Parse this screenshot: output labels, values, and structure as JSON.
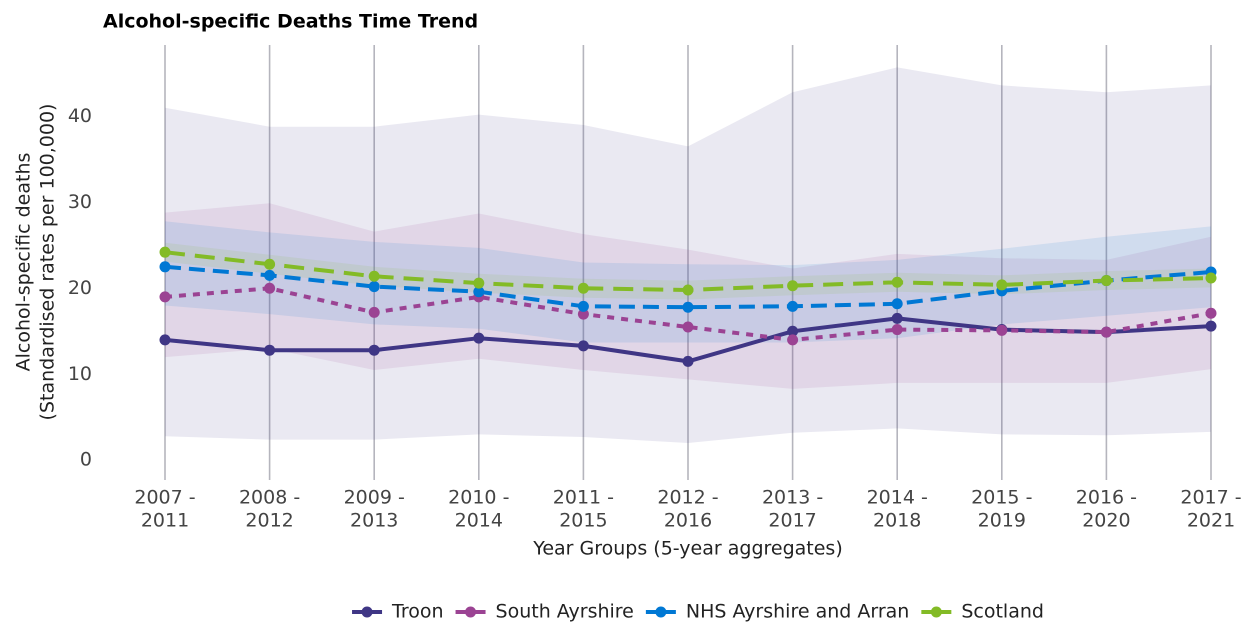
{
  "chart_data": {
    "type": "line",
    "title": "Alcohol-specific Deaths Time Trend",
    "x_label": "Year Groups (5-year aggregates)",
    "y_label": [
      "Alcohol-specific deaths",
      "(Standardised rates per 100,000)"
    ],
    "categories": [
      [
        "2007 -",
        "2011"
      ],
      [
        "2008 -",
        "2012"
      ],
      [
        "2009 -",
        "2013"
      ],
      [
        "2010 -",
        "2014"
      ],
      [
        "2011 -",
        "2015"
      ],
      [
        "2012 -",
        "2016"
      ],
      [
        "2013 -",
        "2017"
      ],
      [
        "2014 -",
        "2018"
      ],
      [
        "2015 -",
        "2019"
      ],
      [
        "2016 -",
        "2020"
      ],
      [
        "2017 -",
        "2021"
      ]
    ],
    "ylim": [
      -2.3,
      48.3
    ],
    "yticks": [
      0,
      10,
      20,
      30,
      40
    ],
    "grid": "vertical",
    "legend": "bottom",
    "series": [
      {
        "name": "Troon",
        "color": "#3f3685",
        "linestyle": "solid",
        "values": [
          14.0,
          12.8,
          12.8,
          14.2,
          13.3,
          11.5,
          15.0,
          16.5,
          15.2,
          14.9,
          15.6
        ],
        "upper": [
          41.0,
          38.8,
          38.8,
          40.2,
          39.0,
          36.5,
          42.8,
          45.7,
          43.6,
          42.8,
          43.6
        ],
        "lower": [
          2.8,
          2.4,
          2.4,
          3.0,
          2.7,
          2.0,
          3.2,
          3.7,
          3.0,
          2.9,
          3.3
        ]
      },
      {
        "name": "South Ayrshire",
        "color": "#9b4393",
        "linestyle": "dotted",
        "values": [
          19.0,
          20.0,
          17.2,
          19.0,
          17.0,
          15.5,
          14.0,
          15.2,
          15.1,
          14.9,
          17.1
        ],
        "upper": [
          28.8,
          29.9,
          26.6,
          28.7,
          26.3,
          24.5,
          22.3,
          24.0,
          23.5,
          23.3,
          26.0
        ],
        "lower": [
          12.0,
          13.0,
          10.5,
          11.8,
          10.5,
          9.4,
          8.3,
          9.0,
          9.0,
          9.0,
          10.6
        ]
      },
      {
        "name": "NHS Ayrshire and Arran",
        "color": "#0078d4",
        "linestyle": "dashed",
        "values": [
          22.5,
          21.5,
          20.2,
          19.6,
          17.9,
          17.8,
          17.9,
          18.2,
          19.7,
          20.9,
          21.9
        ],
        "upper": [
          27.8,
          26.5,
          25.4,
          24.7,
          23.0,
          22.8,
          22.7,
          23.3,
          24.6,
          26.0,
          27.2
        ],
        "lower": [
          18.0,
          17.0,
          15.8,
          15.3,
          13.7,
          13.7,
          13.7,
          14.2,
          15.8,
          16.8,
          17.8
        ]
      },
      {
        "name": "Scotland",
        "color": "#83bb26",
        "linestyle": "longdash",
        "values": [
          24.2,
          22.8,
          21.4,
          20.6,
          20.0,
          19.8,
          20.3,
          20.7,
          20.4,
          20.9,
          21.2
        ],
        "upper": [
          25.3,
          23.9,
          22.5,
          21.7,
          21.1,
          20.9,
          21.4,
          21.8,
          21.5,
          22.0,
          22.3
        ],
        "lower": [
          23.1,
          21.7,
          20.3,
          19.5,
          18.9,
          18.7,
          19.2,
          19.6,
          19.3,
          19.8,
          20.1
        ]
      }
    ]
  }
}
